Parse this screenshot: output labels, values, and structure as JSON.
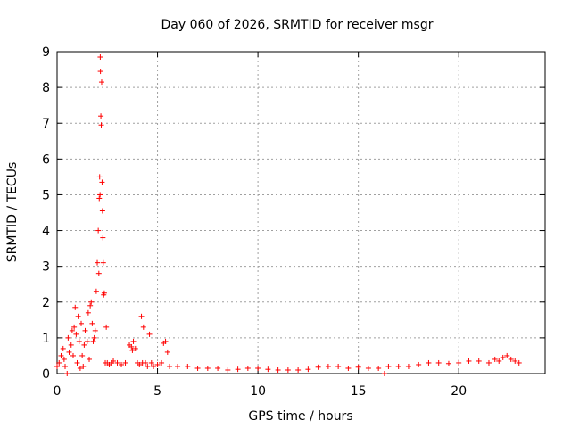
{
  "chart_data": {
    "type": "scatter",
    "title": "Day 060 of 2026, SRMTID for receiver msgr",
    "xlabel": "GPS time / hours",
    "ylabel": "SRMTID / TECUs",
    "xlim": [
      0,
      24.3
    ],
    "ylim": [
      0,
      9
    ],
    "xticks": [
      0,
      5,
      10,
      15,
      20
    ],
    "xtick_labels": [
      "0",
      "5",
      "10",
      "15",
      "20"
    ],
    "yticks": [
      0,
      1,
      2,
      3,
      4,
      5,
      6,
      7,
      8,
      9
    ],
    "ytick_labels": [
      "0",
      "1",
      "2",
      "3",
      "4",
      "5",
      "6",
      "7",
      "8",
      "9"
    ],
    "grid": true,
    "marker": "+",
    "color": "#ff0000",
    "series": [
      {
        "name": "SRMTID",
        "x": [
          0.0,
          0.1,
          0.2,
          0.3,
          0.35,
          0.4,
          0.5,
          0.55,
          0.6,
          0.7,
          0.75,
          0.8,
          0.85,
          0.9,
          0.95,
          1.0,
          1.05,
          1.1,
          1.15,
          1.2,
          1.25,
          1.3,
          1.35,
          1.4,
          1.5,
          1.55,
          1.6,
          1.65,
          1.7,
          1.75,
          1.8,
          1.85,
          1.9,
          1.95,
          2.0,
          2.05,
          2.08,
          2.1,
          2.12,
          2.14,
          2.15,
          2.16,
          2.18,
          2.2,
          2.22,
          2.24,
          2.26,
          2.28,
          2.3,
          2.32,
          2.35,
          2.4,
          2.45,
          2.5,
          2.6,
          2.7,
          2.8,
          3.0,
          3.2,
          3.4,
          3.6,
          3.7,
          3.75,
          3.8,
          3.9,
          4.0,
          4.1,
          4.2,
          4.25,
          4.3,
          4.4,
          4.5,
          4.6,
          4.7,
          4.8,
          5.0,
          5.2,
          5.3,
          5.4,
          5.5,
          5.6,
          6.0,
          6.5,
          7.0,
          7.5,
          8.0,
          8.5,
          9.0,
          9.5,
          10.0,
          10.5,
          11.0,
          11.5,
          12.0,
          12.5,
          13.0,
          13.5,
          14.0,
          14.5,
          15.0,
          15.5,
          16.0,
          16.3,
          16.5,
          17.0,
          17.5,
          18.0,
          18.5,
          19.0,
          19.5,
          20.0,
          20.5,
          21.0,
          21.5,
          21.8,
          22.0,
          22.2,
          22.4,
          22.6,
          22.8,
          23.0
        ],
        "y": [
          0.2,
          0.3,
          0.5,
          0.7,
          0.4,
          0.2,
          0.0,
          1.0,
          0.6,
          0.8,
          1.2,
          0.5,
          1.3,
          1.85,
          1.1,
          0.3,
          1.6,
          0.9,
          0.15,
          1.4,
          0.5,
          0.2,
          0.8,
          1.2,
          0.9,
          1.7,
          0.4,
          1.9,
          2.0,
          1.4,
          0.9,
          1.0,
          1.2,
          2.3,
          3.1,
          4.0,
          2.8,
          4.9,
          5.5,
          5.0,
          8.85,
          8.45,
          7.2,
          6.95,
          8.15,
          5.35,
          4.55,
          3.8,
          3.1,
          2.2,
          2.25,
          0.3,
          1.3,
          0.3,
          0.25,
          0.3,
          0.35,
          0.3,
          0.25,
          0.3,
          0.8,
          0.75,
          0.65,
          0.9,
          0.7,
          0.3,
          0.25,
          1.6,
          0.3,
          1.3,
          0.3,
          0.2,
          1.1,
          0.3,
          0.2,
          0.25,
          0.3,
          0.85,
          0.9,
          0.6,
          0.2,
          0.2,
          0.2,
          0.15,
          0.15,
          0.15,
          0.1,
          0.12,
          0.15,
          0.15,
          0.12,
          0.1,
          0.1,
          0.1,
          0.12,
          0.18,
          0.2,
          0.2,
          0.15,
          0.18,
          0.15,
          0.15,
          0.0,
          0.2,
          0.2,
          0.2,
          0.25,
          0.3,
          0.3,
          0.28,
          0.3,
          0.35,
          0.35,
          0.3,
          0.4,
          0.35,
          0.45,
          0.5,
          0.4,
          0.35,
          0.3
        ]
      }
    ]
  }
}
